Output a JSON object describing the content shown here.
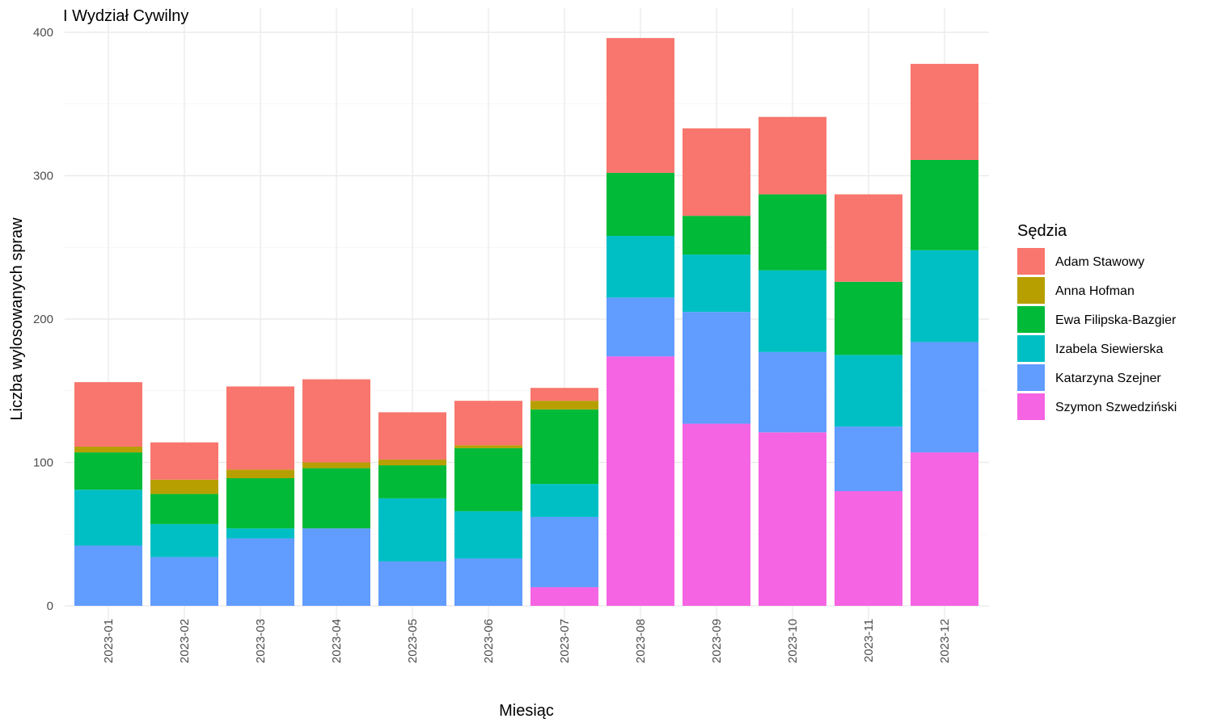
{
  "chart_data": {
    "type": "bar",
    "stacked": true,
    "title": "I Wydział Cywilny",
    "xlabel": "Miesiąc",
    "ylabel": "Liczba wylosowanych spraw",
    "ylim": [
      0,
      400
    ],
    "yticks": [
      0,
      100,
      200,
      300,
      400
    ],
    "grid": true,
    "legend": {
      "title": "Sędzia",
      "position": "right"
    },
    "categories": [
      "2023-01",
      "2023-02",
      "2023-03",
      "2023-04",
      "2023-05",
      "2023-06",
      "2023-07",
      "2023-08",
      "2023-09",
      "2023-10",
      "2023-11",
      "2023-12"
    ],
    "series": [
      {
        "name": "Szymon Szwedziński",
        "color": "#F564E3",
        "values": [
          0,
          0,
          0,
          0,
          0,
          0,
          13,
          174,
          127,
          121,
          80,
          107
        ]
      },
      {
        "name": "Katarzyna Szejner",
        "color": "#619CFF",
        "values": [
          42,
          34,
          47,
          54,
          31,
          33,
          49,
          41,
          78,
          56,
          45,
          77
        ]
      },
      {
        "name": "Izabela Siewierska",
        "color": "#00BFC4",
        "values": [
          39,
          23,
          7,
          0,
          44,
          33,
          23,
          43,
          40,
          57,
          50,
          64
        ]
      },
      {
        "name": "Ewa Filipska-Bazgier",
        "color": "#00BA38",
        "values": [
          26,
          21,
          35,
          42,
          23,
          44,
          52,
          44,
          27,
          53,
          51,
          63
        ]
      },
      {
        "name": "Anna Hofman",
        "color": "#B79F00",
        "values": [
          4,
          10,
          6,
          4,
          4,
          2,
          6,
          0,
          0,
          0,
          0,
          0
        ]
      },
      {
        "name": "Adam Stawowy",
        "color": "#F8766D",
        "values": [
          45,
          26,
          58,
          58,
          33,
          31,
          9,
          94,
          61,
          54,
          61,
          67
        ]
      }
    ],
    "legend_order": [
      "Adam Stawowy",
      "Anna Hofman",
      "Ewa Filipska-Bazgier",
      "Izabela Siewierska",
      "Katarzyna Szejner",
      "Szymon Szwedziński"
    ]
  }
}
